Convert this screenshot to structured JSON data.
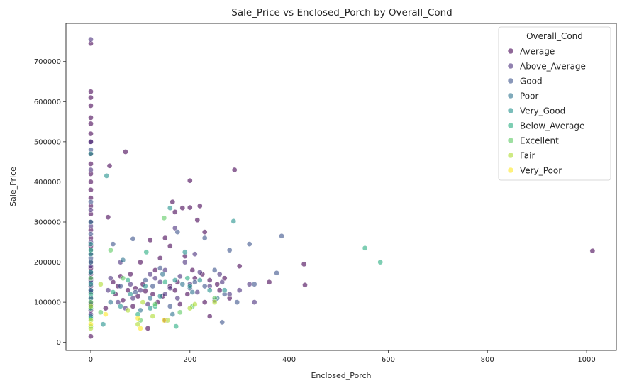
{
  "chart_data": {
    "type": "scatter",
    "title": "Sale_Price vs Enclosed_Porch by Overall_Cond",
    "xlabel": "Enclosed_Porch",
    "ylabel": "Sale_Price",
    "xlim": [
      -50,
      1060
    ],
    "ylim": [
      -20000,
      795000
    ],
    "xticks": [
      0,
      200,
      400,
      600,
      800,
      1000
    ],
    "yticks": [
      0,
      100000,
      200000,
      300000,
      400000,
      500000,
      600000,
      700000
    ],
    "grid": false,
    "legend": {
      "title": "Overall_Cond",
      "placement": "top-right"
    },
    "series": [
      {
        "name": "Average",
        "color": "#440154",
        "points": [
          [
            0,
            745000
          ],
          [
            0,
            625000
          ],
          [
            0,
            610000
          ],
          [
            0,
            590000
          ],
          [
            0,
            560000
          ],
          [
            0,
            545000
          ],
          [
            0,
            520000
          ],
          [
            0,
            500000
          ],
          [
            0,
            470000
          ],
          [
            0,
            445000
          ],
          [
            0,
            420000
          ],
          [
            0,
            400000
          ],
          [
            0,
            380000
          ],
          [
            0,
            360000
          ],
          [
            0,
            340000
          ],
          [
            0,
            320000
          ],
          [
            0,
            300000
          ],
          [
            0,
            280000
          ],
          [
            0,
            260000
          ],
          [
            0,
            240000
          ],
          [
            0,
            220000
          ],
          [
            0,
            200000
          ],
          [
            0,
            185000
          ],
          [
            0,
            170000
          ],
          [
            0,
            155000
          ],
          [
            0,
            140000
          ],
          [
            0,
            125000
          ],
          [
            0,
            110000
          ],
          [
            0,
            95000
          ],
          [
            0,
            80000
          ],
          [
            0,
            15000
          ],
          [
            38,
            440000
          ],
          [
            35,
            312000
          ],
          [
            70,
            475000
          ],
          [
            200,
            403000
          ],
          [
            290,
            430000
          ],
          [
            165,
            350000
          ],
          [
            200,
            336000
          ],
          [
            220,
            340000
          ],
          [
            185,
            335000
          ],
          [
            170,
            325000
          ],
          [
            215,
            305000
          ],
          [
            230,
            275000
          ],
          [
            150,
            260000
          ],
          [
            120,
            255000
          ],
          [
            160,
            240000
          ],
          [
            190,
            215000
          ],
          [
            140,
            210000
          ],
          [
            100,
            200000
          ],
          [
            130,
            180000
          ],
          [
            80,
            170000
          ],
          [
            60,
            165000
          ],
          [
            45,
            150000
          ],
          [
            55,
            140000
          ],
          [
            90,
            135000
          ],
          [
            110,
            128000
          ],
          [
            125,
            120000
          ],
          [
            145,
            115000
          ],
          [
            160,
            140000
          ],
          [
            175,
            150000
          ],
          [
            210,
            160000
          ],
          [
            225,
            170000
          ],
          [
            240,
            155000
          ],
          [
            255,
            145000
          ],
          [
            270,
            160000
          ],
          [
            300,
            190000
          ],
          [
            360,
            150000
          ],
          [
            430,
            195000
          ],
          [
            432,
            143000
          ],
          [
            1012,
            228000
          ],
          [
            85,
            90000
          ],
          [
            150,
            55000
          ],
          [
            115,
            35000
          ],
          [
            30,
            85000
          ],
          [
            65,
            105000
          ],
          [
            95,
            115000
          ],
          [
            135,
            100000
          ],
          [
            170,
            130000
          ],
          [
            195,
            120000
          ],
          [
            205,
            180000
          ],
          [
            230,
            100000
          ],
          [
            260,
            130000
          ],
          [
            280,
            110000
          ],
          [
            50,
            120000
          ],
          [
            75,
            130000
          ],
          [
            105,
            145000
          ],
          [
            180,
            95000
          ],
          [
            240,
            65000
          ]
        ]
      },
      {
        "name": "Above_Average",
        "color": "#472d7b",
        "points": [
          [
            0,
            755000
          ],
          [
            0,
            500000
          ],
          [
            0,
            430000
          ],
          [
            0,
            330000
          ],
          [
            0,
            290000
          ],
          [
            0,
            250000
          ],
          [
            0,
            230000
          ],
          [
            0,
            190000
          ],
          [
            0,
            175000
          ],
          [
            0,
            160000
          ],
          [
            0,
            130000
          ],
          [
            0,
            100000
          ],
          [
            0,
            70000
          ],
          [
            40,
            160000
          ],
          [
            60,
            200000
          ],
          [
            80,
            145000
          ],
          [
            100,
            130000
          ],
          [
            120,
            170000
          ],
          [
            140,
            150000
          ],
          [
            160,
            135000
          ],
          [
            180,
            165000
          ],
          [
            200,
            145000
          ],
          [
            220,
            175000
          ],
          [
            240,
            140000
          ],
          [
            260,
            170000
          ],
          [
            280,
            120000
          ],
          [
            300,
            130000
          ],
          [
            320,
            145000
          ],
          [
            330,
            100000
          ],
          [
            55,
            100000
          ],
          [
            85,
            110000
          ],
          [
            115,
            95000
          ],
          [
            150,
            120000
          ],
          [
            175,
            110000
          ],
          [
            215,
            125000
          ],
          [
            250,
            105000
          ],
          [
            35,
            130000
          ],
          [
            70,
            85000
          ],
          [
            130,
            160000
          ],
          [
            190,
            200000
          ],
          [
            170,
            285000
          ],
          [
            150,
            180000
          ],
          [
            210,
            220000
          ],
          [
            265,
            150000
          ]
        ]
      },
      {
        "name": "Good",
        "color": "#3b528b",
        "points": [
          [
            0,
            480000
          ],
          [
            0,
            350000
          ],
          [
            0,
            270000
          ],
          [
            0,
            210000
          ],
          [
            0,
            150000
          ],
          [
            0,
            90000
          ],
          [
            385,
            265000
          ],
          [
            320,
            245000
          ],
          [
            375,
            173000
          ],
          [
            85,
            258000
          ],
          [
            175,
            275000
          ],
          [
            230,
            260000
          ],
          [
            265,
            50000
          ],
          [
            295,
            100000
          ],
          [
            330,
            145000
          ],
          [
            280,
            230000
          ],
          [
            140,
            185000
          ],
          [
            110,
            155000
          ],
          [
            90,
            125000
          ],
          [
            60,
            140000
          ],
          [
            200,
            135000
          ],
          [
            250,
            180000
          ],
          [
            45,
            245000
          ],
          [
            125,
            140000
          ],
          [
            160,
            90000
          ],
          [
            210,
            150000
          ],
          [
            230,
            140000
          ],
          [
            270,
            120000
          ]
        ]
      },
      {
        "name": "Poor",
        "color": "#2c728e",
        "points": [
          [
            0,
            300000
          ],
          [
            0,
            200000
          ],
          [
            0,
            130000
          ],
          [
            0,
            65000
          ],
          [
            65,
            205000
          ],
          [
            145,
            170000
          ],
          [
            165,
            70000
          ],
          [
            120,
            110000
          ],
          [
            185,
            145000
          ],
          [
            205,
            125000
          ],
          [
            255,
            110000
          ],
          [
            100,
            80000
          ],
          [
            40,
            100000
          ]
        ]
      },
      {
        "name": "Very_Good",
        "color": "#21918c",
        "points": [
          [
            0,
            470000
          ],
          [
            0,
            245000
          ],
          [
            0,
            220000
          ],
          [
            0,
            175000
          ],
          [
            0,
            145000
          ],
          [
            0,
            110000
          ],
          [
            32,
            415000
          ],
          [
            160,
            335000
          ],
          [
            288,
            302000
          ],
          [
            190,
            225000
          ],
          [
            220,
            155000
          ],
          [
            240,
            130000
          ],
          [
            80,
            120000
          ],
          [
            110,
            140000
          ],
          [
            140,
            115000
          ],
          [
            60,
            90000
          ],
          [
            25,
            45000
          ],
          [
            120,
            85000
          ],
          [
            170,
            155000
          ],
          [
            200,
            140000
          ],
          [
            270,
            130000
          ]
        ]
      },
      {
        "name": "Below_Average",
        "color": "#28ae80",
        "points": [
          [
            0,
            230000
          ],
          [
            0,
            120000
          ],
          [
            0,
            85000
          ],
          [
            0,
            60000
          ],
          [
            553,
            235000
          ],
          [
            584,
            200000
          ],
          [
            112,
            225000
          ],
          [
            172,
            40000
          ],
          [
            130,
            90000
          ],
          [
            150,
            150000
          ],
          [
            195,
            160000
          ],
          [
            95,
            70000
          ],
          [
            75,
            155000
          ],
          [
            45,
            125000
          ]
        ]
      },
      {
        "name": "Excellent",
        "color": "#5ec962",
        "points": [
          [
            0,
            160000
          ],
          [
            0,
            100000
          ],
          [
            0,
            40000
          ],
          [
            148,
            310000
          ],
          [
            40,
            230000
          ],
          [
            65,
            160000
          ],
          [
            205,
            90000
          ],
          [
            100,
            55000
          ],
          [
            130,
            95000
          ],
          [
            180,
            75000
          ],
          [
            20,
            75000
          ],
          [
            250,
            110000
          ]
        ]
      },
      {
        "name": "Fair",
        "color": "#addc30",
        "points": [
          [
            0,
            90000
          ],
          [
            0,
            55000
          ],
          [
            0,
            35000
          ],
          [
            20,
            145000
          ],
          [
            75,
            80000
          ],
          [
            95,
            45000
          ],
          [
            125,
            65000
          ],
          [
            200,
            85000
          ],
          [
            210,
            95000
          ],
          [
            105,
            100000
          ],
          [
            155,
            55000
          ],
          [
            250,
            100000
          ]
        ]
      },
      {
        "name": "Very_Poor",
        "color": "#fde725",
        "points": [
          [
            0,
            45000
          ],
          [
            100,
            35000
          ],
          [
            148,
            55000
          ],
          [
            30,
            70000
          ],
          [
            95,
            60000
          ]
        ]
      }
    ]
  }
}
